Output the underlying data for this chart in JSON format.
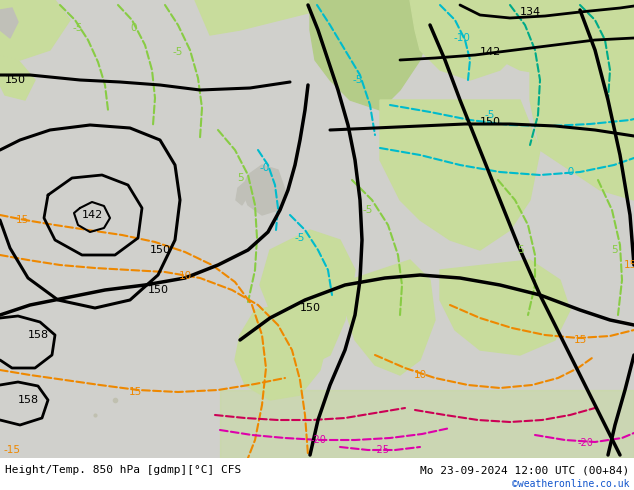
{
  "title_left": "Height/Temp. 850 hPa [gdmp][°C] CFS",
  "title_right": "Mo 23-09-2024 12:00 UTC (00+84)",
  "credit": "©weatheronline.co.uk",
  "ocean_color": "#d0d0cc",
  "land_light": "#c8dc9c",
  "land_green": "#b4cc88",
  "bg_strip": "#ffffff",
  "black": "#000000",
  "cyan": "#00bbcc",
  "teal": "#00aa88",
  "lime": "#88cc44",
  "orange": "#ee8800",
  "red": "#cc0055",
  "magenta": "#dd00aa",
  "fig_width": 6.34,
  "fig_height": 4.9,
  "dpi": 100
}
